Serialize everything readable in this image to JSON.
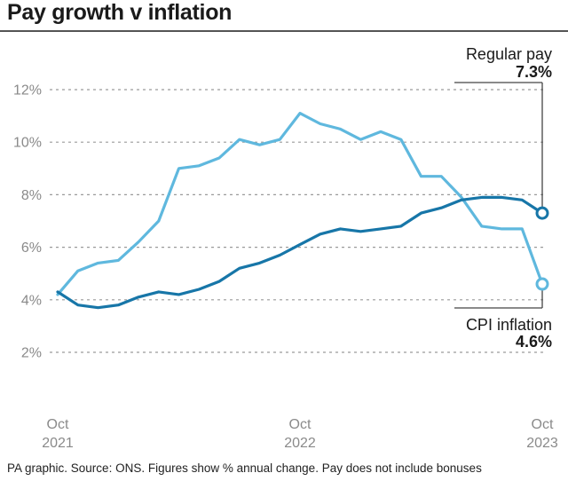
{
  "title": "Pay growth v inflation",
  "source": "PA graphic. Source: ONS. Figures show % annual change. Pay does not include bonuses",
  "colors": {
    "regular_pay": "#1776a8",
    "cpi": "#5fb8de",
    "grid": "#9a9a9a",
    "text": "#8a8a8a"
  },
  "chart_data": {
    "type": "line",
    "title": "Pay growth v inflation",
    "xlabel": "",
    "ylabel": "",
    "ylim": [
      0,
      12
    ],
    "yticks": [
      2,
      4,
      6,
      8,
      10,
      12
    ],
    "ytick_labels": [
      "2%",
      "4%",
      "6%",
      "8%",
      "10%",
      "12%"
    ],
    "x": [
      "Oct 2021",
      "Nov 2021",
      "Dec 2021",
      "Jan 2022",
      "Feb 2022",
      "Mar 2022",
      "Apr 2022",
      "May 2022",
      "Jun 2022",
      "Jul 2022",
      "Aug 2022",
      "Sep 2022",
      "Oct 2022",
      "Nov 2022",
      "Dec 2022",
      "Jan 2023",
      "Feb 2023",
      "Mar 2023",
      "Apr 2023",
      "May 2023",
      "Jun 2023",
      "Jul 2023",
      "Aug 2023",
      "Sep 2023",
      "Oct 2023"
    ],
    "xticks": [
      {
        "index": 0,
        "line1": "Oct",
        "line2": "2021"
      },
      {
        "index": 12,
        "line1": "Oct",
        "line2": "2022"
      },
      {
        "index": 24,
        "line1": "Oct",
        "line2": "2023"
      }
    ],
    "series": [
      {
        "name": "CPI inflation",
        "color": "#5fb8de",
        "values": [
          4.2,
          5.1,
          5.4,
          5.5,
          6.2,
          7.0,
          9.0,
          9.1,
          9.4,
          10.1,
          9.9,
          10.1,
          11.1,
          10.7,
          10.5,
          10.1,
          10.4,
          10.1,
          8.7,
          8.7,
          7.9,
          6.8,
          6.7,
          6.7,
          4.6
        ]
      },
      {
        "name": "Regular pay",
        "color": "#1776a8",
        "values": [
          4.3,
          3.8,
          3.7,
          3.8,
          4.1,
          4.3,
          4.2,
          4.4,
          4.7,
          5.2,
          5.4,
          5.7,
          6.1,
          6.5,
          6.7,
          6.6,
          6.7,
          6.8,
          7.3,
          7.5,
          7.8,
          7.9,
          7.9,
          7.8,
          7.3
        ]
      }
    ],
    "annotations": [
      {
        "series": "Regular pay",
        "label": "Regular pay",
        "value_label": "7.3%",
        "position": "top-right"
      },
      {
        "series": "CPI inflation",
        "label": "CPI inflation",
        "value_label": "4.6%",
        "position": "bottom-right"
      }
    ]
  }
}
